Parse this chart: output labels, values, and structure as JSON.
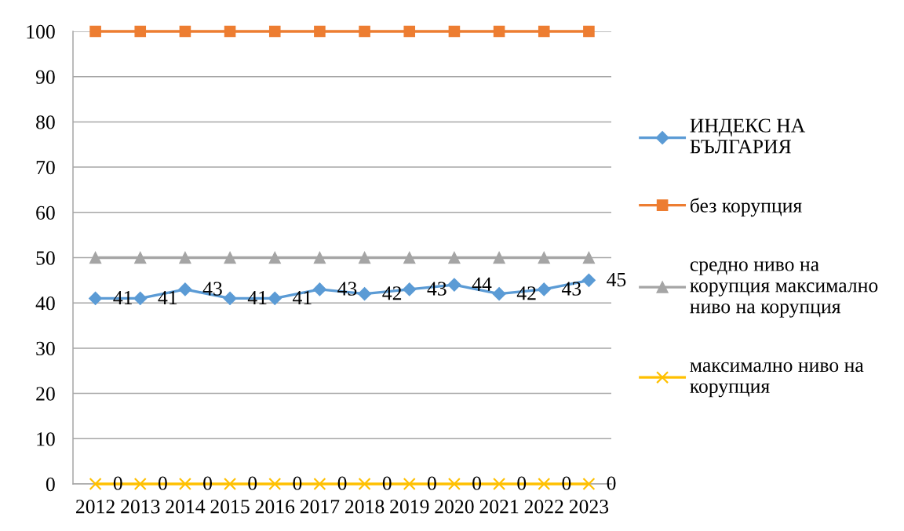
{
  "chart_data": {
    "type": "line",
    "categories": [
      "2012",
      "2013",
      "2014",
      "2015",
      "2016",
      "2017",
      "2018",
      "2019",
      "2020",
      "2021",
      "2022",
      "2023"
    ],
    "series": [
      {
        "name": "ИНДЕКС НА БЪЛГАРИЯ",
        "color": "#5b9bd5",
        "marker": "diamond",
        "values": [
          41,
          41,
          43,
          41,
          41,
          43,
          42,
          43,
          44,
          42,
          43,
          45
        ],
        "value_labels": [
          "41",
          "41",
          "43",
          "41",
          "41",
          "43",
          "42",
          "43",
          "44",
          "42",
          "43",
          "45"
        ]
      },
      {
        "name": "без корупция",
        "color": "#ed7d31",
        "marker": "square",
        "values": [
          100,
          100,
          100,
          100,
          100,
          100,
          100,
          100,
          100,
          100,
          100,
          100
        ]
      },
      {
        "name": "средно ниво на корупция максимално ниво на корупция",
        "color": "#a5a5a5",
        "marker": "triangle",
        "values": [
          50,
          50,
          50,
          50,
          50,
          50,
          50,
          50,
          50,
          50,
          50,
          50
        ]
      },
      {
        "name": "максимално ниво на корупция",
        "color": "#ffc000",
        "marker": "cross",
        "values": [
          0,
          0,
          0,
          0,
          0,
          0,
          0,
          0,
          0,
          0,
          0,
          0
        ],
        "value_labels": [
          "0",
          "0",
          "0",
          "0",
          "0",
          "0",
          "0",
          "0",
          "0",
          "0",
          "0",
          "0"
        ]
      }
    ],
    "ylim": [
      0,
      100
    ],
    "yticks": [
      0,
      10,
      20,
      30,
      40,
      50,
      60,
      70,
      80,
      90,
      100
    ],
    "grid": "y",
    "legend": "right",
    "line_style": "solid"
  }
}
